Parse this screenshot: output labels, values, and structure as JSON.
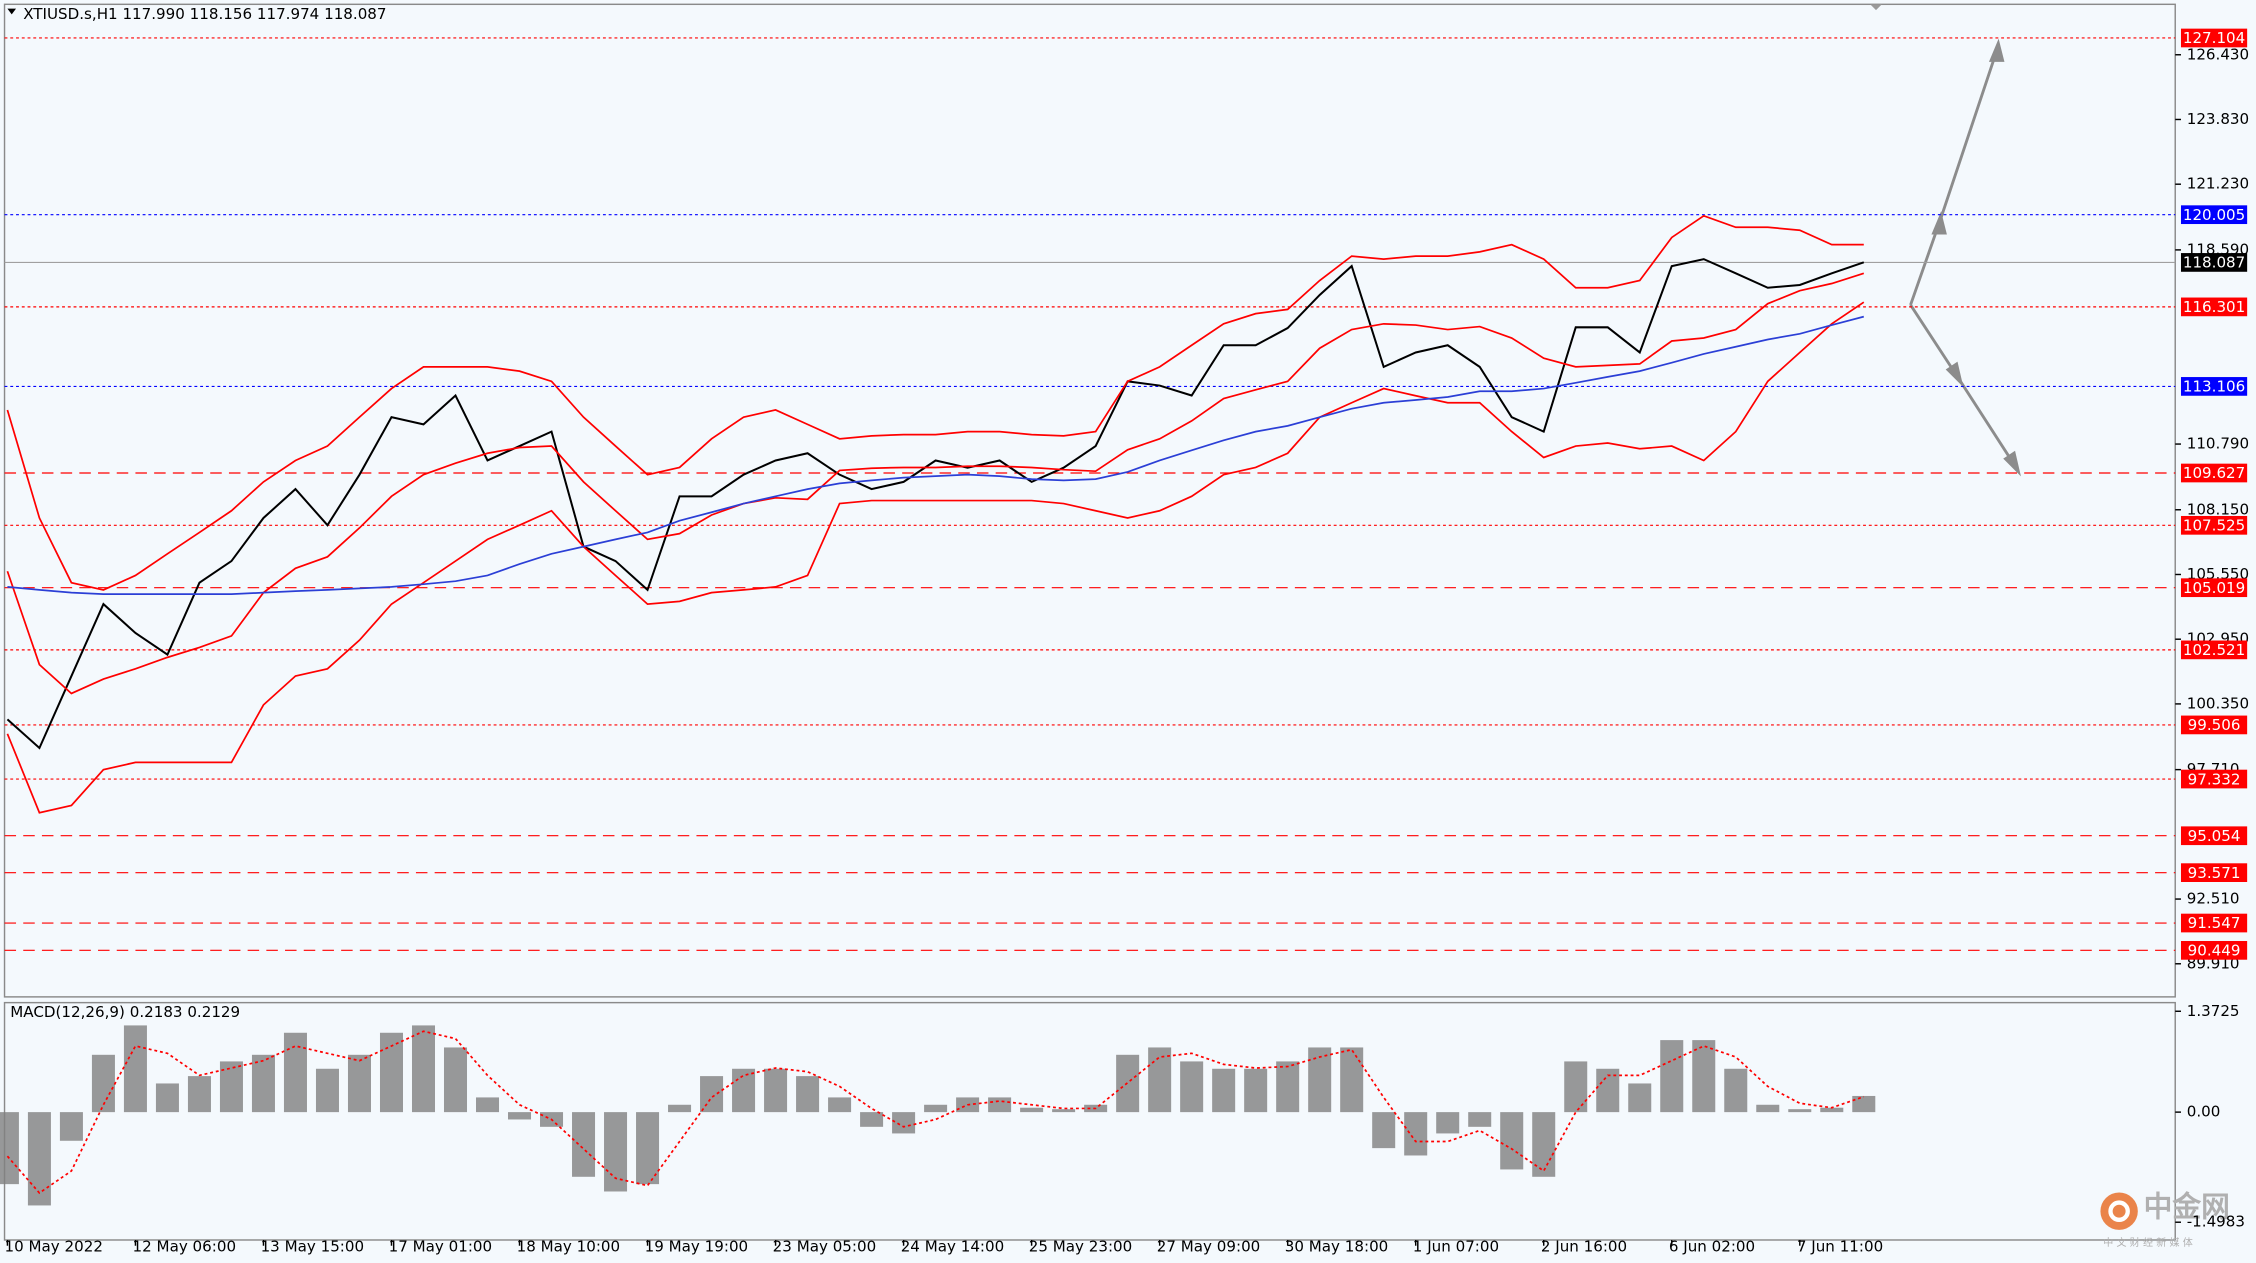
{
  "chart_data": [
    {
      "type": "price",
      "title": "XTIUSD.s,H1 117.990 118.156 117.974 118.087",
      "categories": [
        "10 May 2022",
        null,
        null,
        null,
        "12 May 06:00",
        null,
        null,
        null,
        "13 May 15:00",
        null,
        null,
        null,
        "17 May 01:00",
        null,
        null,
        null,
        "18 May 10:00",
        null,
        null,
        null,
        "19 May 19:00",
        null,
        null,
        null,
        "23 May 05:00",
        null,
        null,
        null,
        "24 May 14:00",
        null,
        null,
        null,
        "25 May 23:00",
        null,
        null,
        null,
        "27 May 09:00",
        null,
        null,
        null,
        "30 May 18:00",
        null,
        null,
        null,
        "1 Jun 07:00",
        null,
        null,
        null,
        "2 Jun 16:00",
        null,
        null,
        null,
        "6 Jun 02:00",
        null,
        null,
        null,
        "7 Jun 11:00",
        null,
        null
      ],
      "series": [
        {
          "color": "#000000",
          "values": [
            99.73,
            98.58,
            101.47,
            104.36,
            103.2,
            102.33,
            105.22,
            106.09,
            107.82,
            108.98,
            107.53,
            109.56,
            111.87,
            111.58,
            112.74,
            110.13,
            110.71,
            111.29,
            106.67,
            106.09,
            104.93,
            108.69,
            108.69,
            109.56,
            110.13,
            110.42,
            109.56,
            108.98,
            109.27,
            110.13,
            109.84,
            110.13,
            109.27,
            109.84,
            110.71,
            113.31,
            113.14,
            112.74,
            114.76,
            114.76,
            115.45,
            116.78,
            117.94,
            113.89,
            114.47,
            114.76,
            113.89,
            111.87,
            111.29,
            115.48,
            115.48,
            114.47,
            117.94,
            118.22,
            117.65,
            117.07,
            117.18,
            117.65,
            118.09
          ]
        },
        {
          "color": "#ff0000",
          "values": [
            112.16,
            107.82,
            105.22,
            104.93,
            105.51,
            106.38,
            107.24,
            108.11,
            109.27,
            110.13,
            110.71,
            111.87,
            113.02,
            113.89,
            113.89,
            113.89,
            113.72,
            113.31,
            111.87,
            110.71,
            109.56,
            109.85,
            111.0,
            111.87,
            112.16,
            111.58,
            111.0,
            111.12,
            111.17,
            111.17,
            111.29,
            111.29,
            111.17,
            111.12,
            111.29,
            113.31,
            113.89,
            114.76,
            115.62,
            116.03,
            116.2,
            117.36,
            118.34,
            118.22,
            118.34,
            118.34,
            118.51,
            118.8,
            118.22,
            117.07,
            117.07,
            117.36,
            119.09,
            119.96,
            119.5,
            119.5,
            119.38,
            118.8,
            118.8
          ]
        },
        {
          "color": "#ff0000",
          "values": [
            105.68,
            101.93,
            100.77,
            101.35,
            101.76,
            102.22,
            102.62,
            103.08,
            104.82,
            105.8,
            106.26,
            107.42,
            108.69,
            109.56,
            110.02,
            110.42,
            110.65,
            110.71,
            109.27,
            108.11,
            106.96,
            107.19,
            107.94,
            108.4,
            108.63,
            108.57,
            109.73,
            109.82,
            109.85,
            109.85,
            109.9,
            109.9,
            109.85,
            109.76,
            109.7,
            110.56,
            111.0,
            111.72,
            112.62,
            112.97,
            113.31,
            114.64,
            115.39,
            115.62,
            115.57,
            115.39,
            115.51,
            115.05,
            114.24,
            113.89,
            113.95,
            114.01,
            114.93,
            115.05,
            115.39,
            116.43,
            116.95,
            117.24,
            117.65
          ]
        },
        {
          "color": "#ff0000",
          "values": [
            99.15,
            95.98,
            96.27,
            97.71,
            98.0,
            98.0,
            98.0,
            98.0,
            100.31,
            101.47,
            101.76,
            102.91,
            104.36,
            105.22,
            106.09,
            106.96,
            107.53,
            108.11,
            106.67,
            105.51,
            104.36,
            104.47,
            104.82,
            104.93,
            105.05,
            105.51,
            108.4,
            108.52,
            108.52,
            108.52,
            108.52,
            108.52,
            108.52,
            108.4,
            108.11,
            107.82,
            108.11,
            108.69,
            109.56,
            109.85,
            110.42,
            111.87,
            112.45,
            113.02,
            112.73,
            112.45,
            112.45,
            111.29,
            110.25,
            110.71,
            110.83,
            110.6,
            110.71,
            110.13,
            111.29,
            113.31,
            114.47,
            115.62,
            116.49
          ]
        },
        {
          "color": "#2b3fd6",
          "values": [
            105.05,
            104.93,
            104.82,
            104.76,
            104.76,
            104.76,
            104.76,
            104.76,
            104.82,
            104.88,
            104.93,
            104.99,
            105.05,
            105.16,
            105.28,
            105.51,
            105.97,
            106.38,
            106.67,
            106.96,
            107.24,
            107.71,
            108.05,
            108.4,
            108.69,
            108.98,
            109.21,
            109.33,
            109.44,
            109.5,
            109.56,
            109.5,
            109.38,
            109.33,
            109.38,
            109.67,
            110.13,
            110.54,
            110.94,
            111.29,
            111.52,
            111.87,
            112.21,
            112.45,
            112.56,
            112.68,
            112.91,
            112.91,
            113.02,
            113.25,
            113.49,
            113.72,
            114.06,
            114.41,
            114.7,
            114.99,
            115.22,
            115.57,
            115.91
          ]
        }
      ],
      "ylim": [
        88.58,
        128.63
      ],
      "yticks": [
        {
          "value": 126.43,
          "label": "126.430"
        },
        {
          "value": 123.83,
          "label": "123.830"
        },
        {
          "value": 121.23,
          "label": "121.230"
        },
        {
          "value": 118.59,
          "label": "118.590"
        },
        {
          "value": 110.79,
          "label": "110.790"
        },
        {
          "value": 108.15,
          "label": "108.150"
        },
        {
          "value": 105.55,
          "label": "105.550"
        },
        {
          "value": 102.95,
          "label": "102.950"
        },
        {
          "value": 100.35,
          "label": "100.350"
        },
        {
          "value": 97.71,
          "label": "97.710"
        },
        {
          "value": 92.51,
          "label": "92.510"
        },
        {
          "value": 89.91,
          "label": "89.910"
        }
      ],
      "levels": [
        {
          "value": 127.104,
          "color": "#ff0000",
          "dash": "dotted"
        },
        {
          "value": 120.005,
          "color": "#0000ff",
          "dash": "dotted"
        },
        {
          "value": 118.087,
          "color": "#000000",
          "dash": "solid"
        },
        {
          "value": 116.301,
          "color": "#ff0000",
          "dash": "dotted"
        },
        {
          "value": 113.106,
          "color": "#0000ff",
          "dash": "dotted"
        },
        {
          "value": 109.627,
          "color": "#ff0000",
          "dash": "dashed"
        },
        {
          "value": 107.525,
          "color": "#ff0000",
          "dash": "dotted"
        },
        {
          "value": 105.019,
          "color": "#ff0000",
          "dash": "dashed"
        },
        {
          "value": 102.521,
          "color": "#ff0000",
          "dash": "dotted"
        },
        {
          "value": 99.506,
          "color": "#ff0000",
          "dash": "dotted"
        },
        {
          "value": 97.332,
          "color": "#ff0000",
          "dash": "dotted"
        },
        {
          "value": 95.054,
          "color": "#ff0000",
          "dash": "dashed"
        },
        {
          "value": 93.571,
          "color": "#ff0000",
          "dash": "dashed"
        },
        {
          "value": 91.547,
          "color": "#ff0000",
          "dash": "dashed"
        },
        {
          "value": 90.449,
          "color": "#ff0000",
          "dash": "dashed"
        }
      ]
    },
    {
      "type": "macd",
      "title": "MACD(12,26,9) 0.2183 0.2129",
      "series": [
        {
          "color": "#808080",
          "style": "bar",
          "values": [
            -0.98,
            -1.27,
            -0.39,
            0.78,
            1.18,
            0.39,
            0.49,
            0.69,
            0.78,
            1.08,
            0.59,
            0.78,
            1.08,
            1.18,
            0.88,
            0.2,
            -0.1,
            -0.2,
            -0.88,
            -1.08,
            -0.98,
            0.1,
            0.49,
            0.59,
            0.59,
            0.49,
            0.2,
            -0.2,
            -0.29,
            0.1,
            0.2,
            0.2,
            0.06,
            0.04,
            0.1,
            0.78,
            0.88,
            0.69,
            0.59,
            0.59,
            0.69,
            0.88,
            0.88,
            -0.49,
            -0.59,
            -0.29,
            -0.2,
            -0.78,
            -0.88,
            0.69,
            0.59,
            0.39,
            0.98,
            0.98,
            0.59,
            0.1,
            0.04,
            0.06,
            0.22
          ]
        },
        {
          "color": "#ff0000",
          "style": "dotted",
          "values": [
            -0.6,
            -1.1,
            -0.8,
            0.1,
            0.9,
            0.8,
            0.5,
            0.6,
            0.7,
            0.9,
            0.8,
            0.7,
            0.9,
            1.1,
            1.0,
            0.5,
            0.1,
            -0.1,
            -0.5,
            -0.9,
            -1.0,
            -0.4,
            0.2,
            0.5,
            0.6,
            0.55,
            0.35,
            0.05,
            -0.2,
            -0.1,
            0.1,
            0.15,
            0.1,
            0.05,
            0.05,
            0.4,
            0.75,
            0.8,
            0.65,
            0.6,
            0.62,
            0.75,
            0.85,
            0.2,
            -0.4,
            -0.4,
            -0.25,
            -0.5,
            -0.8,
            0.0,
            0.5,
            0.5,
            0.7,
            0.9,
            0.75,
            0.35,
            0.12,
            0.06,
            0.21
          ]
        }
      ],
      "ylim": [
        -1.74,
        1.49
      ],
      "yticks": [
        1.3725,
        {
          "value": 0,
          "label": "0.00"
        },
        -1.4983
      ]
    }
  ],
  "watermark": {
    "name": "中金网",
    "tagline": "中 文 财 经 新 媒 体"
  }
}
